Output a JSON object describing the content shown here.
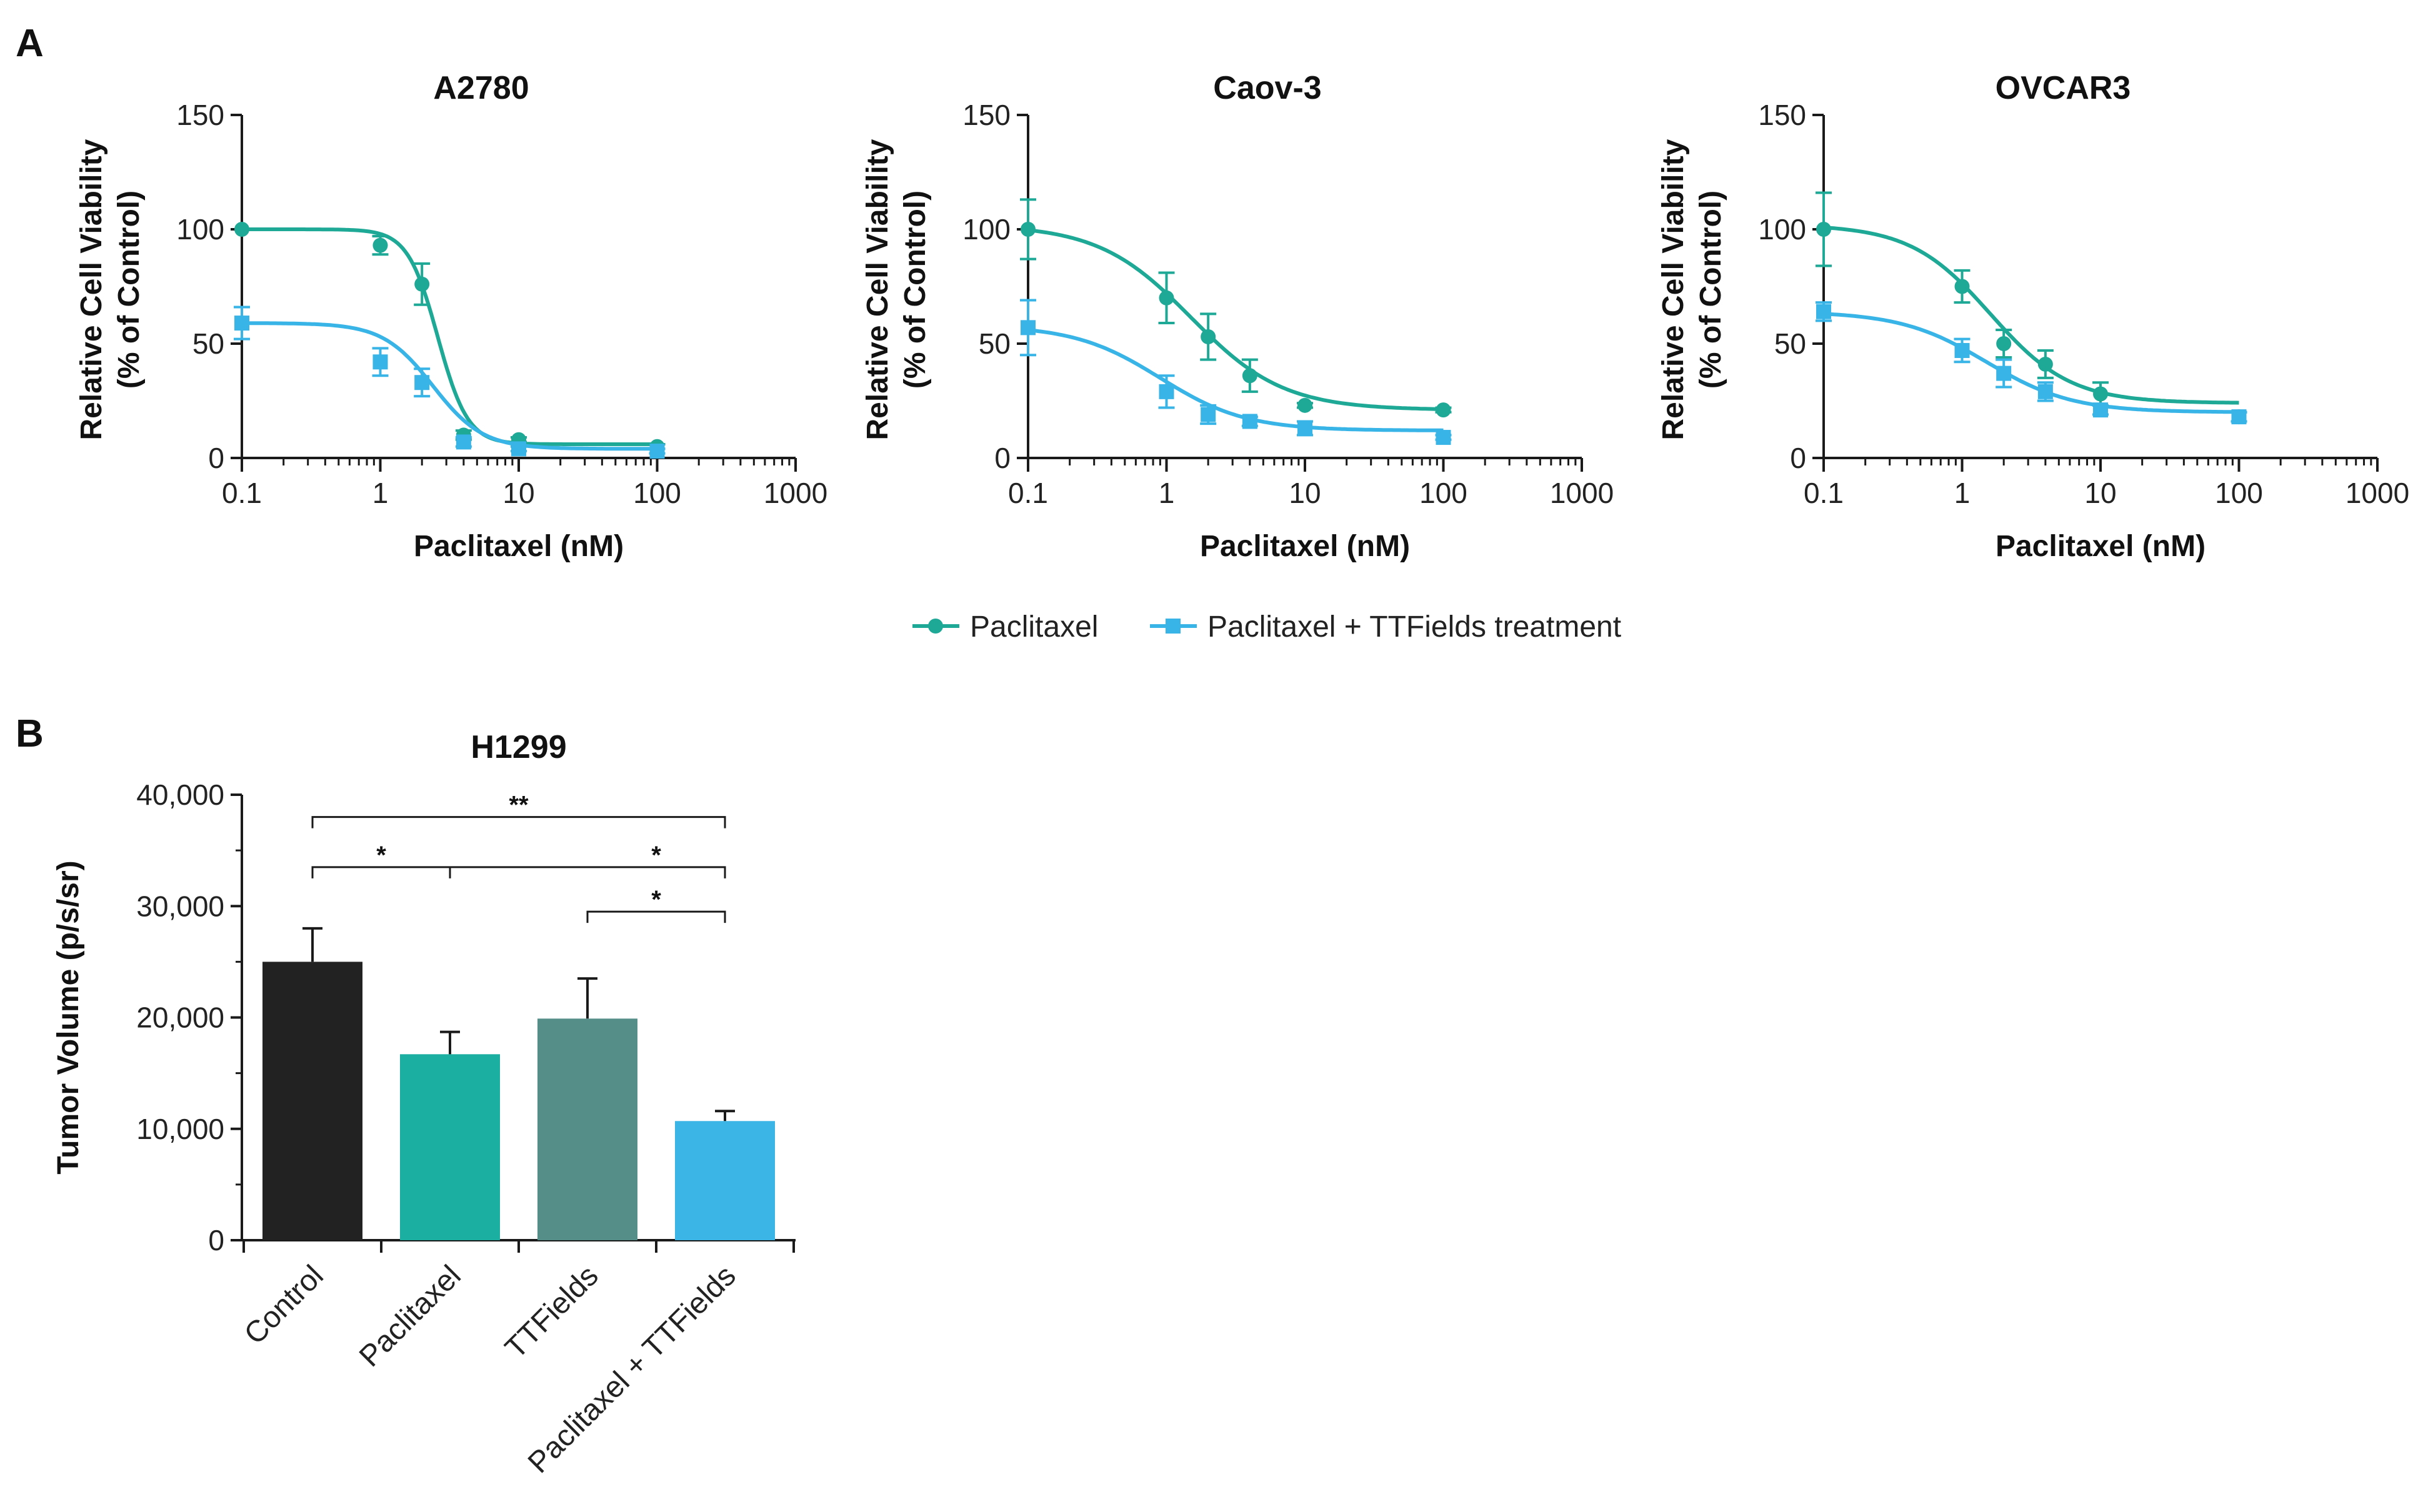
{
  "panel_labels": {
    "a": "A",
    "b": "B"
  },
  "legend": [
    {
      "label": "Paclitaxel",
      "color": "#1EA896",
      "marker": "circle"
    },
    {
      "label": "Paclitaxel + TTFields treatment",
      "color": "#39B4E6",
      "marker": "square"
    }
  ],
  "colors": {
    "paclitaxel": "#1EA896",
    "combo": "#39B4E6",
    "axis": "#1a1a1a"
  },
  "chart_data": [
    {
      "type": "line",
      "title": "A2780",
      "xlabel": "Paclitaxel (nM)",
      "ylabel": [
        "Relative Cell Viability",
        "(% of Control)"
      ],
      "x_scale": "log",
      "xlim": [
        0.1,
        1000
      ],
      "ylim": [
        0,
        150
      ],
      "x_ticks": [
        "0.1",
        "1",
        "10",
        "100",
        "1000"
      ],
      "y_ticks": [
        "0",
        "50",
        "100",
        "150"
      ],
      "series": [
        {
          "name": "Paclitaxel",
          "marker": "circle",
          "x": [
            0.1,
            1,
            2,
            4,
            10,
            100
          ],
          "y": [
            100,
            93,
            76,
            10,
            8,
            5
          ],
          "err": [
            0,
            4,
            9,
            2,
            1,
            1
          ],
          "fit": {
            "top": 100,
            "bottom": 6,
            "ec50": 2.6,
            "hill": 4.0
          }
        },
        {
          "name": "Paclitaxel + TTFields treatment",
          "marker": "square",
          "x": [
            0.1,
            1,
            2,
            4,
            10,
            100
          ],
          "y": [
            59,
            42,
            33,
            7,
            4,
            3
          ],
          "err": [
            7,
            6,
            6,
            2,
            1,
            1
          ],
          "fit": {
            "top": 59,
            "bottom": 4,
            "ec50": 2.4,
            "hill": 2.4
          }
        }
      ]
    },
    {
      "type": "line",
      "title": "Caov-3",
      "xlabel": "Paclitaxel (nM)",
      "ylabel": [
        "Relative Cell Viability",
        "(% of Control)"
      ],
      "x_scale": "log",
      "xlim": [
        0.1,
        1000
      ],
      "ylim": [
        0,
        150
      ],
      "x_ticks": [
        "0.1",
        "1",
        "10",
        "100",
        "1000"
      ],
      "y_ticks": [
        "0",
        "50",
        "100",
        "150"
      ],
      "series": [
        {
          "name": "Paclitaxel",
          "marker": "circle",
          "x": [
            0.1,
            1,
            2,
            4,
            10,
            100
          ],
          "y": [
            100,
            70,
            53,
            36,
            23,
            21
          ],
          "err": [
            13,
            11,
            10,
            7,
            1,
            1
          ],
          "fit": {
            "top": 102,
            "bottom": 21,
            "ec50": 1.5,
            "hill": 1.3
          }
        },
        {
          "name": "Paclitaxel + TTFields treatment",
          "marker": "square",
          "x": [
            0.1,
            1,
            2,
            4,
            10,
            100
          ],
          "y": [
            57,
            29,
            19,
            16,
            13,
            9
          ],
          "err": [
            12,
            7,
            4,
            2,
            3,
            1
          ],
          "fit": {
            "top": 58,
            "bottom": 12,
            "ec50": 0.9,
            "hill": 1.4
          }
        }
      ]
    },
    {
      "type": "line",
      "title": "OVCAR3",
      "xlabel": "Paclitaxel (nM)",
      "ylabel": [
        "Relative Cell Viability",
        "(% of Control)"
      ],
      "x_scale": "log",
      "xlim": [
        0.1,
        1000
      ],
      "ylim": [
        0,
        150
      ],
      "x_ticks": [
        "0.1",
        "1",
        "10",
        "100",
        "1000"
      ],
      "y_ticks": [
        "0",
        "50",
        "100",
        "150"
      ],
      "series": [
        {
          "name": "Paclitaxel",
          "marker": "circle",
          "x": [
            0.1,
            1,
            2,
            4,
            10,
            100
          ],
          "y": [
            100,
            75,
            50,
            41,
            28,
            18
          ],
          "err": [
            16,
            7,
            6,
            6,
            5,
            2
          ],
          "fit": {
            "top": 102,
            "bottom": 24,
            "ec50": 1.6,
            "hill": 1.5
          }
        },
        {
          "name": "Paclitaxel + TTFields treatment",
          "marker": "square",
          "x": [
            0.1,
            1,
            2,
            4,
            10,
            100
          ],
          "y": [
            64,
            47,
            37,
            29,
            21,
            18
          ],
          "err": [
            4,
            5,
            6,
            4,
            2,
            2
          ],
          "fit": {
            "top": 64,
            "bottom": 20,
            "ec50": 1.5,
            "hill": 1.4
          }
        }
      ]
    },
    {
      "type": "bar",
      "title": "H1299",
      "ylabel": "Tumor Volume (p/s/sr)",
      "ylim": [
        0,
        40000
      ],
      "y_ticks": [
        "0",
        "10,000",
        "20,000",
        "30,000",
        "40,000"
      ],
      "categories": [
        "Control",
        "Paclitaxel",
        "TTFields",
        "Paclitaxel + TTFields"
      ],
      "values": [
        25000,
        16700,
        19900,
        10700
      ],
      "errors": [
        3000,
        2000,
        3600,
        900
      ],
      "bar_colors": [
        "#222222",
        "#1AAFA0",
        "#558E88",
        "#3AB5E6"
      ],
      "significance": [
        {
          "from": 0,
          "to": 3,
          "y": 38000,
          "label": "**"
        },
        {
          "from": 0,
          "to": 3,
          "y": 33500,
          "label": "*",
          "mid_tick": 1
        },
        {
          "from": 2,
          "to": 3,
          "y": 29500,
          "label": "*"
        }
      ],
      "sig_label_positions": [
        1,
        2,
        2.5
      ]
    }
  ]
}
